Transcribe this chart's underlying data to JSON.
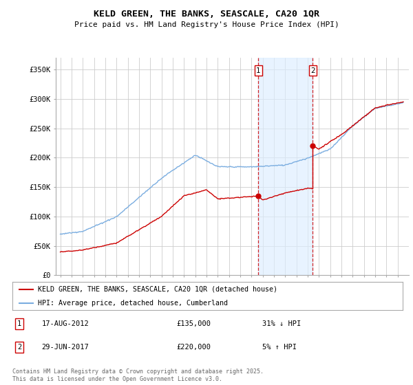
{
  "title": "KELD GREEN, THE BANKS, SEASCALE, CA20 1QR",
  "subtitle": "Price paid vs. HM Land Registry's House Price Index (HPI)",
  "ylim": [
    0,
    370000
  ],
  "yticks": [
    0,
    50000,
    100000,
    150000,
    200000,
    250000,
    300000,
    350000
  ],
  "ytick_labels": [
    "£0",
    "£50K",
    "£100K",
    "£150K",
    "£200K",
    "£250K",
    "£300K",
    "£350K"
  ],
  "background_color": "#ffffff",
  "grid_color": "#cccccc",
  "red_color": "#cc0000",
  "blue_color": "#7aade0",
  "sale1_year": 2012.625,
  "sale1_price": 135000,
  "sale2_year": 2017.458,
  "sale2_price": 220000,
  "shade_color": "#ddeeff",
  "legend_red_label": "KELD GREEN, THE BANKS, SEASCALE, CA20 1QR (detached house)",
  "legend_blue_label": "HPI: Average price, detached house, Cumberland",
  "annotation1": [
    "1",
    "17-AUG-2012",
    "£135,000",
    "31% ↓ HPI"
  ],
  "annotation2": [
    "2",
    "29-JUN-2017",
    "£220,000",
    "5% ↑ HPI"
  ],
  "footer": "Contains HM Land Registry data © Crown copyright and database right 2025.\nThis data is licensed under the Open Government Licence v3.0."
}
